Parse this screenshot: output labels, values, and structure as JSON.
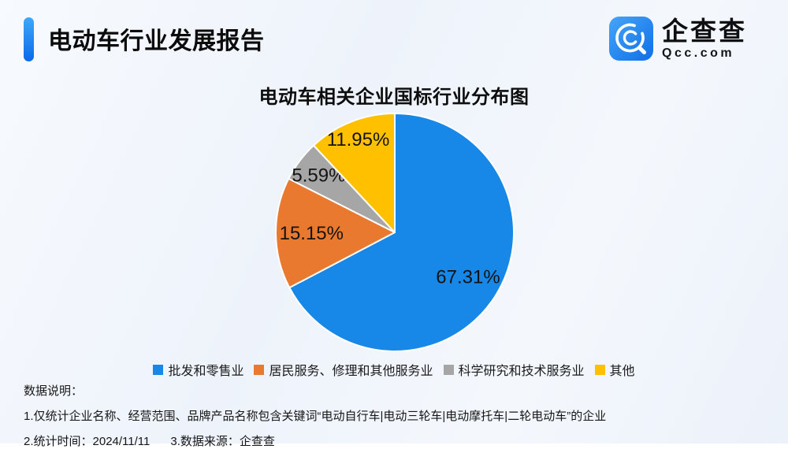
{
  "header": {
    "title": "电动车行业发展报告"
  },
  "logo": {
    "brand": "企查查",
    "domain": "Qcc.com"
  },
  "chart_data": {
    "type": "pie",
    "title": "电动车相关企业国标行业分布图",
    "categories": [
      "批发和零售业",
      "居民服务、修理和其他服务业",
      "科学研究和技术服务业",
      "其他"
    ],
    "values": [
      67.31,
      15.15,
      5.59,
      11.95
    ],
    "labels": [
      "67.31%",
      "15.15%",
      "5.59%",
      "11.95%"
    ],
    "colors": [
      "#1788E8",
      "#E8792E",
      "#A6A6A6",
      "#FFC000"
    ],
    "start_angle": "12-oclock",
    "direction": "clockwise",
    "legend_position": "bottom"
  },
  "notes": {
    "heading": "数据说明：",
    "line1": "1.仅统计企业名称、经营范围、品牌产品名称包含关键词“电动自行车|电动三轮车|电动摩托车|二轮电动车”的企业",
    "line2_time": "2.统计时间：2024/11/11",
    "line2_source": "3.数据来源：企查查"
  },
  "theme": {
    "accent_blue": "#0B6AE8",
    "background": "#EFF3FB"
  }
}
